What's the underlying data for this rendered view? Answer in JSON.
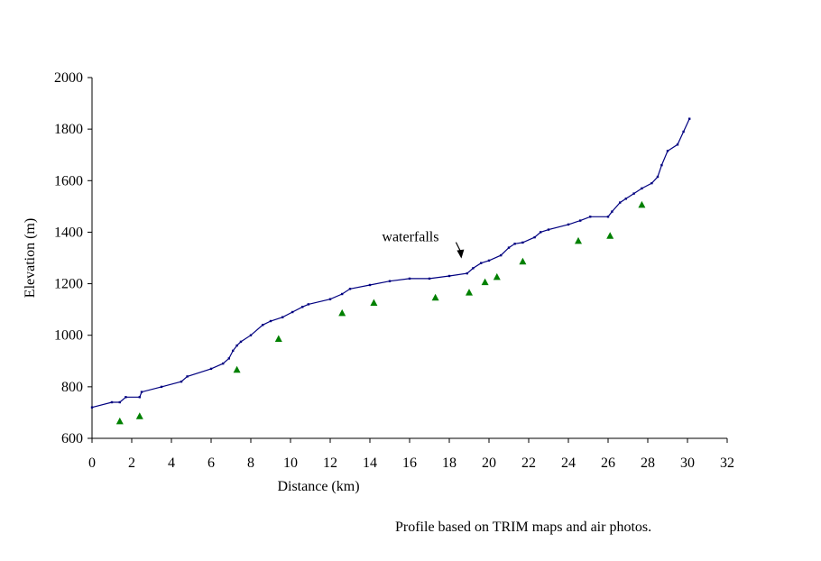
{
  "caption": "Profile based on TRIM maps and air photos.",
  "chart_data": {
    "type": "line",
    "title": "",
    "xlabel": "Distance (km)",
    "ylabel": "Elevation (m)",
    "xlim": [
      0,
      32
    ],
    "ylim": [
      600,
      2000
    ],
    "x_ticks": [
      0,
      2,
      4,
      6,
      8,
      10,
      12,
      14,
      16,
      18,
      20,
      22,
      24,
      26,
      28,
      30,
      32
    ],
    "y_ticks": [
      600,
      800,
      1000,
      1200,
      1400,
      1600,
      1800,
      2000
    ],
    "grid": false,
    "legend": "none",
    "colors": {
      "line": "#000080",
      "markers": "#008000"
    },
    "series": [
      {
        "type": "line",
        "x": [
          0,
          1,
          1.4,
          1.7,
          2.4,
          2.5,
          3.5,
          4.5,
          4.8,
          6,
          6.6,
          6.9,
          7.1,
          7.3,
          7.5,
          8,
          8.6,
          9,
          9.6,
          10.1,
          10.6,
          10.9,
          12,
          12.6,
          13,
          14,
          15,
          16,
          17,
          18,
          18.9,
          19.2,
          19.6,
          20,
          20.6,
          21,
          21.3,
          21.7,
          22.3,
          22.6,
          23,
          24,
          24.6,
          25.1,
          26,
          26.2,
          26.6,
          26.9,
          27.3,
          27.7,
          28.2,
          28.5,
          28.7,
          29,
          29.5,
          29.8,
          30.1
        ],
        "y": [
          720,
          740,
          740,
          760,
          760,
          780,
          800,
          820,
          840,
          870,
          890,
          910,
          940,
          960,
          975,
          1000,
          1040,
          1055,
          1070,
          1090,
          1110,
          1120,
          1140,
          1160,
          1180,
          1195,
          1210,
          1220,
          1220,
          1230,
          1240,
          1260,
          1280,
          1290,
          1310,
          1340,
          1355,
          1360,
          1380,
          1400,
          1410,
          1430,
          1445,
          1460,
          1460,
          1480,
          1515,
          1530,
          1550,
          1570,
          1590,
          1615,
          1660,
          1715,
          1740,
          1790,
          1840
        ]
      },
      {
        "type": "scatter",
        "marker": "triangle",
        "x": [
          1.4,
          2.4,
          7.3,
          9.4,
          12.6,
          14.2,
          17.3,
          19,
          19.8,
          20.4,
          21.7,
          24.5,
          26.1,
          27.7
        ],
        "y": [
          665,
          685,
          865,
          985,
          1085,
          1125,
          1145,
          1165,
          1205,
          1225,
          1285,
          1365,
          1385,
          1505
        ]
      }
    ],
    "annotations": [
      {
        "text": "waterfalls",
        "x": 18.7,
        "y": 1235
      }
    ]
  }
}
